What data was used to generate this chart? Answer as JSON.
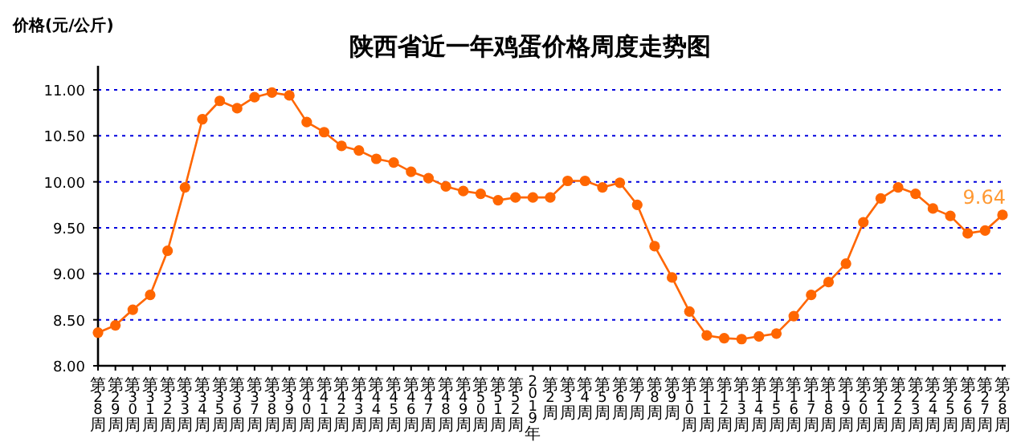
{
  "chart_data": {
    "type": "line",
    "title": "陕西省近一年鸡蛋价格周度走势图",
    "ylabel": "价格(元/公斤)",
    "categories": [
      "第28周",
      "第29周",
      "第30周",
      "第31周",
      "第32周",
      "第33周",
      "第34周",
      "第35周",
      "第36周",
      "第37周",
      "第38周",
      "第39周",
      "第40周",
      "第41周",
      "第42周",
      "第43周",
      "第44周",
      "第45周",
      "第46周",
      "第47周",
      "第48周",
      "第49周",
      "第50周",
      "第51周",
      "第52周",
      "2019年",
      "第2周",
      "第3周",
      "第4周",
      "第5周",
      "第6周",
      "第7周",
      "第8周",
      "第9周",
      "第10周",
      "第11周",
      "第12周",
      "第13周",
      "第14周",
      "第15周",
      "第16周",
      "第17周",
      "第18周",
      "第19周",
      "第20周",
      "第21周",
      "第22周",
      "第23周",
      "第24周",
      "第25周",
      "第26周",
      "第27周",
      "第28周"
    ],
    "values": [
      8.36,
      8.44,
      8.61,
      8.77,
      9.25,
      9.94,
      10.68,
      10.88,
      10.8,
      10.92,
      10.97,
      10.94,
      10.65,
      10.54,
      10.39,
      10.34,
      10.25,
      10.21,
      10.11,
      10.04,
      9.95,
      9.9,
      9.87,
      9.8,
      9.83,
      9.83,
      9.83,
      10.01,
      10.01,
      9.94,
      9.99,
      9.75,
      9.3,
      8.96,
      8.59,
      8.33,
      8.3,
      8.29,
      8.32,
      8.35,
      8.54,
      8.77,
      8.91,
      9.11,
      9.56,
      9.82,
      9.94,
      9.87,
      9.71,
      9.63,
      9.44,
      9.47,
      9.64
    ],
    "value_labels": [
      null,
      null,
      null,
      null,
      null,
      null,
      null,
      null,
      null,
      null,
      null,
      null,
      null,
      null,
      null,
      null,
      null,
      null,
      null,
      null,
      null,
      null,
      null,
      null,
      null,
      null,
      null,
      null,
      null,
      null,
      null,
      null,
      null,
      null,
      null,
      null,
      null,
      null,
      null,
      null,
      null,
      null,
      null,
      null,
      null,
      null,
      null,
      null,
      null,
      null,
      null,
      null,
      "9.64"
    ],
    "color": "#ff6600",
    "marker": "circle",
    "grid": "y",
    "ylim": [
      8,
      11
    ],
    "yticks": [
      {
        "value": 8,
        "label": "8.00"
      },
      {
        "value": 8.5,
        "label": "8.50"
      },
      {
        "value": 9,
        "label": "9.00"
      },
      {
        "value": 9.5,
        "label": "9.50"
      },
      {
        "value": 10,
        "label": "10.00"
      },
      {
        "value": 10.5,
        "label": "10.50"
      },
      {
        "value": 11,
        "label": "11.00"
      }
    ]
  }
}
